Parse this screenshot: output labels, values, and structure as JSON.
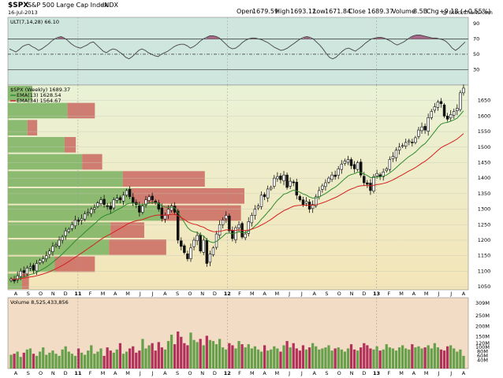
{
  "header": {
    "symbol": "$SPX",
    "name": "S&P 500 Large Cap Index",
    "exchange": "INDX",
    "date": "16-Jul-2013",
    "watermark": "@ StockCharts.com",
    "open_label": "Open",
    "open": "1679.59",
    "high_label": "High",
    "high": "1693.12",
    "low_label": "Low",
    "low": "1671.84",
    "close_label": "Close",
    "close": "1689.37",
    "volume_label": "Volume",
    "volume": "8.5B",
    "chg_label": "Chg",
    "chg": "+9.18 (+0.55%)"
  },
  "colors": {
    "ult_bg": "#cfe6df",
    "price_bg_top": "#eaf2d6",
    "price_bg_bottom": "#f3e5b8",
    "vol_bg": "#f2dcc5",
    "ema13": "#2e8b2e",
    "ema34": "#d42020",
    "vp_up": "#7ab260",
    "vp_down": "#c8605a",
    "vol_up": "#66a04a",
    "vol_down": "#b2305a",
    "ult_line": "#444444",
    "ult_fill": "#a05078"
  },
  "chart_data": [
    {
      "type": "line",
      "panel": "indicator",
      "title": "ULT(7,14,28) 66.10",
      "yticks": [
        30,
        50,
        70,
        90
      ],
      "ylim": [
        10,
        98
      ],
      "reference_lines": [
        70,
        50,
        30
      ],
      "values": [
        57,
        55,
        53,
        56,
        60,
        62,
        63,
        60,
        58,
        55,
        57,
        60,
        63,
        67,
        70,
        72,
        73,
        71,
        68,
        64,
        61,
        59,
        58,
        60,
        62,
        65,
        66,
        62,
        58,
        54,
        52,
        55,
        57,
        56,
        53,
        50,
        46,
        44,
        47,
        51,
        55,
        57,
        55,
        52,
        50,
        48,
        47,
        50,
        52,
        54,
        57,
        60,
        62,
        63,
        63,
        61,
        58,
        60,
        63,
        67,
        70,
        72,
        74,
        74,
        73,
        71,
        67,
        63,
        59,
        57,
        58,
        61,
        65,
        68,
        70,
        71,
        71,
        70,
        69,
        67,
        65,
        62,
        59,
        57,
        55,
        56,
        58,
        61,
        64,
        67,
        70,
        72,
        73,
        72,
        70,
        66,
        62,
        57,
        51,
        46,
        44,
        46,
        50,
        54,
        57,
        58,
        56,
        54,
        57,
        60,
        64,
        67,
        70,
        71,
        72,
        72,
        71,
        69,
        67,
        64,
        62,
        64,
        66,
        69,
        72,
        74,
        75,
        75,
        74,
        73,
        72,
        71,
        71,
        70,
        69,
        67,
        63,
        58,
        55,
        58,
        62,
        66
      ]
    },
    {
      "type": "candlestick",
      "panel": "price",
      "title": "$SPX (Weekly) 1689.37",
      "series": [
        {
          "name": "EMA(13) 1628.54"
        },
        {
          "name": "EMA(34) 1564.67"
        }
      ],
      "y_axis_ticks": [
        1050,
        1100,
        1150,
        1200,
        1250,
        1300,
        1350,
        1400,
        1450,
        1500,
        1550,
        1600,
        1650
      ],
      "ylim": [
        1040,
        1700
      ],
      "x_axis_ticks": [
        "A",
        "S",
        "O",
        "N",
        "D",
        "11",
        "F",
        "M",
        "A",
        "M",
        "J",
        "J",
        "A",
        "S",
        "O",
        "N",
        "D",
        "12",
        "F",
        "M",
        "A",
        "M",
        "J",
        "J",
        "A",
        "S",
        "O",
        "N",
        "D",
        "13",
        "F",
        "M",
        "A",
        "M",
        "J",
        "J",
        "A"
      ],
      "closes": [
        1075,
        1068,
        1085,
        1100,
        1095,
        1110,
        1115,
        1103,
        1125,
        1135,
        1140,
        1150,
        1165,
        1180,
        1185,
        1200,
        1210,
        1230,
        1235,
        1250,
        1265,
        1260,
        1270,
        1285,
        1290,
        1300,
        1305,
        1320,
        1330,
        1315,
        1310,
        1300,
        1330,
        1335,
        1330,
        1345,
        1360,
        1340,
        1320,
        1315,
        1290,
        1310,
        1330,
        1340,
        1330,
        1320,
        1300,
        1270,
        1280,
        1300,
        1310,
        1290,
        1200,
        1180,
        1160,
        1140,
        1175,
        1200,
        1215,
        1165,
        1200,
        1125,
        1155,
        1175,
        1220,
        1250,
        1265,
        1280,
        1230,
        1205,
        1240,
        1250,
        1210,
        1220,
        1260,
        1280,
        1300,
        1310,
        1345,
        1340,
        1365,
        1370,
        1400,
        1405,
        1395,
        1410,
        1370,
        1390,
        1385,
        1345,
        1330,
        1315,
        1325,
        1300,
        1315,
        1340,
        1360,
        1375,
        1385,
        1400,
        1410,
        1405,
        1430,
        1445,
        1455,
        1460,
        1440,
        1430,
        1450,
        1410,
        1385,
        1380,
        1360,
        1405,
        1415,
        1405,
        1420,
        1430,
        1460,
        1470,
        1490,
        1500,
        1505,
        1515,
        1520,
        1515,
        1530,
        1555,
        1565,
        1555,
        1595,
        1615,
        1630,
        1645,
        1640,
        1600,
        1590,
        1605,
        1615,
        1625,
        1675,
        1690
      ]
    },
    {
      "type": "bar",
      "panel": "volume",
      "title": "Volume 8,525,433,856",
      "y_axis_ticks": [
        "40M",
        "60M",
        "80M",
        "100M",
        "120M",
        "150M",
        "200M",
        "250M",
        "309M"
      ],
      "values": [
        65,
        70,
        80,
        55,
        75,
        90,
        95,
        70,
        60,
        80,
        100,
        65,
        75,
        85,
        70,
        60,
        90,
        105,
        80,
        70,
        60,
        95,
        75,
        65,
        85,
        110,
        70,
        80,
        95,
        60,
        100,
        85,
        75,
        90,
        120,
        70,
        80,
        95,
        105,
        75,
        85,
        140,
        95,
        110,
        120,
        85,
        125,
        100,
        90,
        130,
        160,
        115,
        175,
        150,
        120,
        110,
        170,
        135,
        125,
        140,
        110,
        155,
        135,
        130,
        115,
        140,
        100,
        90,
        120,
        110,
        95,
        130,
        115,
        100,
        115,
        95,
        105,
        90,
        80,
        110,
        85,
        90,
        105,
        95,
        80,
        110,
        130,
        100,
        120,
        95,
        85,
        110,
        90,
        100,
        120,
        105,
        90,
        95,
        100,
        110,
        85,
        95,
        100,
        90,
        80,
        95,
        115,
        90,
        85,
        100,
        120,
        110,
        95,
        90,
        105,
        85,
        90,
        115,
        100,
        95,
        85,
        100,
        110,
        95,
        90,
        115,
        100,
        105,
        95,
        100,
        110,
        95,
        120,
        100,
        90,
        85,
        105,
        110,
        95,
        80,
        90,
        60
      ]
    }
  ]
}
